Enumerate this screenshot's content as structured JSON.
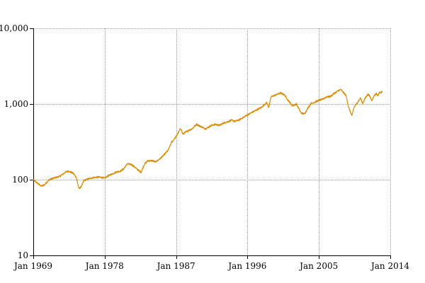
{
  "chart_data": {
    "type": "line",
    "title": "",
    "xlabel": "",
    "ylabel": "",
    "y_scale": "log",
    "ylim": [
      10,
      10000
    ],
    "xlim": [
      "1969-01",
      "2014-01"
    ],
    "grid": true,
    "legend": "none",
    "x_tick_labels": [
      "Jan 1969",
      "Jan 1978",
      "Jan 1987",
      "Jan 1996",
      "Jan 2005",
      "Jan 2014"
    ],
    "y_tick_labels": [
      "10",
      "100",
      "1,000",
      "10,000"
    ],
    "y_tick_values": [
      10,
      100,
      1000,
      10000
    ],
    "series": [
      {
        "color": "#e08a00",
        "points": [
          [
            "1969-01",
            100
          ],
          [
            "1969-06",
            92
          ],
          [
            "1970-01",
            82
          ],
          [
            "1970-06",
            86
          ],
          [
            "1971-01",
            100
          ],
          [
            "1971-06",
            104
          ],
          [
            "1972-01",
            108
          ],
          [
            "1972-06",
            112
          ],
          [
            "1973-01",
            125
          ],
          [
            "1973-06",
            130
          ],
          [
            "1974-01",
            122
          ],
          [
            "1974-06",
            108
          ],
          [
            "1974-10",
            76
          ],
          [
            "1975-01",
            80
          ],
          [
            "1975-06",
            98
          ],
          [
            "1976-01",
            103
          ],
          [
            "1976-06",
            106
          ],
          [
            "1977-01",
            108
          ],
          [
            "1977-06",
            108
          ],
          [
            "1978-01",
            105
          ],
          [
            "1978-06",
            112
          ],
          [
            "1979-01",
            120
          ],
          [
            "1979-06",
            126
          ],
          [
            "1980-01",
            130
          ],
          [
            "1980-06",
            140
          ],
          [
            "1980-11",
            162
          ],
          [
            "1981-06",
            158
          ],
          [
            "1982-01",
            140
          ],
          [
            "1982-08",
            125
          ],
          [
            "1983-01",
            160
          ],
          [
            "1983-06",
            178
          ],
          [
            "1984-01",
            178
          ],
          [
            "1984-06",
            172
          ],
          [
            "1985-01",
            190
          ],
          [
            "1985-06",
            210
          ],
          [
            "1986-01",
            245
          ],
          [
            "1986-06",
            310
          ],
          [
            "1987-01",
            370
          ],
          [
            "1987-08",
            480
          ],
          [
            "1987-11",
            400
          ],
          [
            "1988-06",
            440
          ],
          [
            "1989-01",
            470
          ],
          [
            "1989-08",
            540
          ],
          [
            "1990-01",
            510
          ],
          [
            "1990-10",
            470
          ],
          [
            "1991-06",
            520
          ],
          [
            "1992-01",
            540
          ],
          [
            "1992-06",
            520
          ],
          [
            "1993-01",
            560
          ],
          [
            "1994-01",
            610
          ],
          [
            "1994-06",
            590
          ],
          [
            "1995-01",
            620
          ],
          [
            "1996-01",
            720
          ],
          [
            "1997-01",
            820
          ],
          [
            "1997-10",
            900
          ],
          [
            "1998-06",
            1050
          ],
          [
            "1998-09",
            900
          ],
          [
            "1999-01",
            1250
          ],
          [
            "1999-06",
            1300
          ],
          [
            "2000-03",
            1400
          ],
          [
            "2000-09",
            1320
          ],
          [
            "2001-03",
            1100
          ],
          [
            "2001-09",
            950
          ],
          [
            "2002-03",
            1000
          ],
          [
            "2002-10",
            760
          ],
          [
            "2003-03",
            740
          ],
          [
            "2003-09",
            900
          ],
          [
            "2004-01",
            1020
          ],
          [
            "2004-06",
            1050
          ],
          [
            "2005-01",
            1120
          ],
          [
            "2005-06",
            1150
          ],
          [
            "2006-01",
            1250
          ],
          [
            "2006-06",
            1250
          ],
          [
            "2007-01",
            1400
          ],
          [
            "2007-10",
            1560
          ],
          [
            "2008-01",
            1450
          ],
          [
            "2008-06",
            1300
          ],
          [
            "2008-10",
            900
          ],
          [
            "2009-03",
            700
          ],
          [
            "2009-06",
            900
          ],
          [
            "2010-01",
            1100
          ],
          [
            "2010-04",
            1200
          ],
          [
            "2010-07",
            1020
          ],
          [
            "2011-01",
            1280
          ],
          [
            "2011-04",
            1350
          ],
          [
            "2011-09",
            1120
          ],
          [
            "2012-01",
            1300
          ],
          [
            "2012-04",
            1380
          ],
          [
            "2012-06",
            1280
          ],
          [
            "2012-09",
            1440
          ],
          [
            "2012-12",
            1420
          ],
          [
            "2013-01",
            1480
          ]
        ]
      }
    ]
  }
}
